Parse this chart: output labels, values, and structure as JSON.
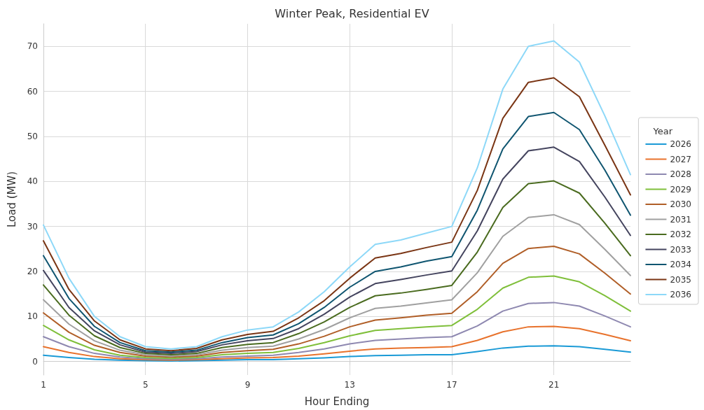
{
  "chart_data": {
    "type": "line",
    "title": "Winter Peak, Residential EV",
    "xlabel": "Hour Ending",
    "ylabel": "Load (MW)",
    "legend_title": "Year",
    "x": [
      1,
      2,
      3,
      4,
      5,
      6,
      7,
      8,
      9,
      10,
      11,
      12,
      13,
      14,
      15,
      16,
      17,
      18,
      19,
      20,
      21,
      22,
      23,
      24
    ],
    "xlim": [
      1,
      24
    ],
    "xticks": [
      1,
      5,
      9,
      13,
      17,
      21
    ],
    "ylim": [
      -3,
      75
    ],
    "yticks": [
      0,
      10,
      20,
      30,
      40,
      50,
      60,
      70
    ],
    "grid": true,
    "legend": "right",
    "marker": "none",
    "line_style": "solid",
    "series": [
      {
        "name": "2026",
        "color": "#1a9ad6",
        "values": [
          1.4,
          0.9,
          0.5,
          0.3,
          0.2,
          0.1,
          0.2,
          0.3,
          0.4,
          0.4,
          0.6,
          0.8,
          1.1,
          1.3,
          1.4,
          1.5,
          1.5,
          2.2,
          3,
          3.4,
          3.5,
          3.3,
          2.7,
          2.1
        ]
      },
      {
        "name": "2027",
        "color": "#e8722c",
        "values": [
          3.3,
          2,
          1.1,
          0.6,
          0.4,
          0.3,
          0.4,
          0.6,
          0.8,
          0.9,
          1.2,
          1.7,
          2.3,
          2.8,
          3,
          3.1,
          3.3,
          4.7,
          6.6,
          7.7,
          7.8,
          7.3,
          6,
          4.6
        ]
      },
      {
        "name": "2028",
        "color": "#8e88b0",
        "values": [
          5.5,
          3.3,
          1.8,
          1,
          0.6,
          0.5,
          0.6,
          1,
          1.2,
          1.4,
          2,
          2.8,
          3.9,
          4.7,
          5,
          5.3,
          5.5,
          7.9,
          11.2,
          12.9,
          13.1,
          12.3,
          10.1,
          7.7
        ]
      },
      {
        "name": "2029",
        "color": "#7fbf3a",
        "values": [
          8,
          4.8,
          2.6,
          1.4,
          0.9,
          0.7,
          0.9,
          1.5,
          1.8,
          2,
          2.9,
          4.2,
          5.7,
          6.9,
          7.3,
          7.7,
          8,
          11.6,
          16.3,
          18.7,
          19,
          17.7,
          14.6,
          11.2
        ]
      },
      {
        "name": "2030",
        "color": "#b05e27",
        "values": [
          10.8,
          6.5,
          3.6,
          2,
          1.2,
          1,
          1.2,
          2,
          2.4,
          2.7,
          3.9,
          5.6,
          7.7,
          9.2,
          9.7,
          10.3,
          10.7,
          15.5,
          21.8,
          25.1,
          25.6,
          23.9,
          19.6,
          15
        ]
      },
      {
        "name": "2031",
        "color": "#a0a0a0",
        "values": [
          13.7,
          8.3,
          4.6,
          2.5,
          1.5,
          1.2,
          1.5,
          2.5,
          3.1,
          3.4,
          5,
          7.1,
          9.7,
          11.8,
          12.3,
          13,
          13.7,
          19.7,
          27.8,
          32,
          32.6,
          30.4,
          24.9,
          19.1
        ]
      },
      {
        "name": "2032",
        "color": "#4a6b1f",
        "values": [
          17,
          10.3,
          5.7,
          3.1,
          1.8,
          1.5,
          1.8,
          3.1,
          3.8,
          4.2,
          6.2,
          8.8,
          12,
          14.6,
          15.2,
          16,
          16.9,
          24.3,
          34.2,
          39.5,
          40.1,
          37.4,
          30.7,
          23.5
        ]
      },
      {
        "name": "2033",
        "color": "#44445e",
        "values": [
          20.2,
          12,
          6.8,
          3.7,
          2.1,
          1.8,
          2.2,
          3.7,
          4.6,
          5.1,
          7.3,
          10.5,
          14.3,
          17.3,
          18.2,
          19.2,
          20.1,
          29,
          40.5,
          46.8,
          47.6,
          44.4,
          36.5,
          28
        ]
      },
      {
        "name": "2034",
        "color": "#0f5570",
        "values": [
          23.5,
          14,
          7.8,
          4.2,
          2.4,
          2.1,
          2.5,
          4.2,
          5.3,
          5.9,
          8.4,
          12,
          16.5,
          20,
          21,
          22.3,
          23.3,
          33.6,
          47.2,
          54.4,
          55.3,
          51.5,
          42.5,
          32.5
        ]
      },
      {
        "name": "2035",
        "color": "#7a3514",
        "values": [
          26.8,
          16,
          9,
          4.8,
          2.8,
          2.4,
          2.9,
          4.8,
          6,
          6.7,
          9.7,
          13.5,
          18.5,
          23,
          24,
          25.3,
          26.5,
          38,
          54,
          62,
          63,
          58.8,
          48,
          37
        ]
      },
      {
        "name": "2036",
        "color": "#8dd8f8",
        "values": [
          30.3,
          18.5,
          10,
          5.5,
          3.3,
          2.8,
          3.3,
          5.5,
          7,
          7.7,
          11,
          15.5,
          21,
          26,
          27,
          28.5,
          30,
          43,
          60.5,
          70,
          71.2,
          66.5,
          54.5,
          41.5
        ]
      }
    ]
  }
}
